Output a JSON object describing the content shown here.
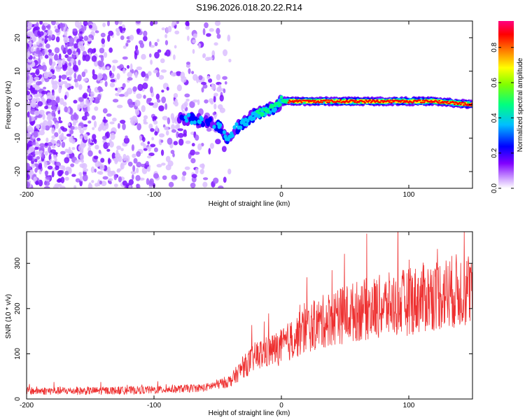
{
  "title": "S196.2026.018.20.22.R14",
  "chart_data": [
    {
      "type": "heatmap",
      "xlabel": "Height of straight line (km)",
      "ylabel": "Frequency (Hz)",
      "xlim": [
        -200,
        150
      ],
      "ylim": [
        -25,
        25
      ],
      "xticks": [
        -200,
        -100,
        0,
        100
      ],
      "yticks": [
        -20,
        -10,
        0,
        10,
        20
      ],
      "grid": false,
      "colorbar": {
        "label": "Normalized spectral amplitude",
        "range": [
          0,
          0.95
        ],
        "ticks": [
          "0.0",
          "0.2",
          "0.4",
          "0.6",
          "0.8"
        ],
        "tick_values": [
          0.0,
          0.2,
          0.4,
          0.6,
          0.8
        ],
        "colors": [
          "#ffffff",
          "#8000ff",
          "#0000ff",
          "#00bfff",
          "#00ff80",
          "#80ff00",
          "#ffff00",
          "#ff8000",
          "#ff0000",
          "#ff0080"
        ]
      },
      "ridge": [
        {
          "x": -75,
          "f": -4
        },
        {
          "x": -60,
          "f": -5
        },
        {
          "x": -50,
          "f": -6
        },
        {
          "x": -42,
          "f": -10
        },
        {
          "x": -35,
          "f": -7
        },
        {
          "x": -25,
          "f": -4
        },
        {
          "x": -15,
          "f": -2
        },
        {
          "x": -5,
          "f": -1
        },
        {
          "x": 0,
          "f": 1
        },
        {
          "x": 10,
          "f": 1
        },
        {
          "x": 30,
          "f": 1
        },
        {
          "x": 60,
          "f": 1
        },
        {
          "x": 90,
          "f": 1
        },
        {
          "x": 120,
          "f": 1
        },
        {
          "x": 150,
          "f": 0
        }
      ]
    },
    {
      "type": "line",
      "xlabel": "Height of straight line (km)",
      "ylabel": "SNR (10 * v/v)",
      "xlim": [
        -200,
        150
      ],
      "ylim": [
        0,
        370
      ],
      "xticks": [
        -200,
        -100,
        0,
        100
      ],
      "yticks": [
        0,
        100,
        200,
        300
      ],
      "grid": false,
      "line_color": "#ee3030",
      "trend": [
        {
          "x": -200,
          "y": 18
        },
        {
          "x": -150,
          "y": 18
        },
        {
          "x": -100,
          "y": 20
        },
        {
          "x": -60,
          "y": 25
        },
        {
          "x": -40,
          "y": 40
        },
        {
          "x": -30,
          "y": 70
        },
        {
          "x": -20,
          "y": 95
        },
        {
          "x": -10,
          "y": 105
        },
        {
          "x": 0,
          "y": 115
        },
        {
          "x": 10,
          "y": 135
        },
        {
          "x": 20,
          "y": 155
        },
        {
          "x": 40,
          "y": 180
        },
        {
          "x": 60,
          "y": 195
        },
        {
          "x": 80,
          "y": 205
        },
        {
          "x": 100,
          "y": 215
        },
        {
          "x": 120,
          "y": 230
        },
        {
          "x": 140,
          "y": 240
        },
        {
          "x": 150,
          "y": 245
        }
      ]
    }
  ]
}
